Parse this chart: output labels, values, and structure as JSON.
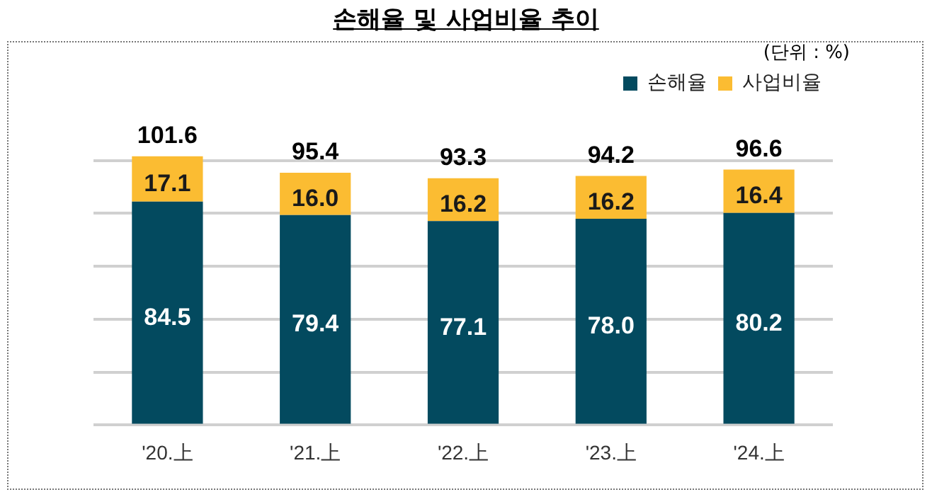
{
  "chart_data": {
    "type": "bar",
    "title": "손해율 및 사업비율 추이",
    "annotations": [
      "(단위 : %)"
    ],
    "categories": [
      "'20.上",
      "'21.上",
      "'22.上",
      "'23.上",
      "'24.上"
    ],
    "stacked": true,
    "series": [
      {
        "name": "손해율",
        "color": "#034a5f",
        "values": [
          84.5,
          79.4,
          77.1,
          78.0,
          80.2
        ],
        "value_labels": [
          "84.5",
          "79.4",
          "77.1",
          "78.0",
          "80.2"
        ]
      },
      {
        "name": "사업비율",
        "color": "#fbbc32",
        "values": [
          17.1,
          16.0,
          16.2,
          16.2,
          16.4
        ],
        "value_labels": [
          "17.1",
          "16.0",
          "16.2",
          "16.2",
          "16.4"
        ]
      }
    ],
    "totals": [
      "101.6",
      "95.4",
      "93.3",
      "94.2",
      "96.6"
    ],
    "yticks": [
      {
        "value": 0,
        "label": null
      },
      {
        "value": 20,
        "label": null
      },
      {
        "value": 40,
        "label": null
      },
      {
        "value": 60,
        "label": null
      },
      {
        "value": 80,
        "label": null
      },
      {
        "value": 100,
        "label": null
      }
    ],
    "grid": "y",
    "legend": "top right",
    "tick_labels": "x"
  }
}
